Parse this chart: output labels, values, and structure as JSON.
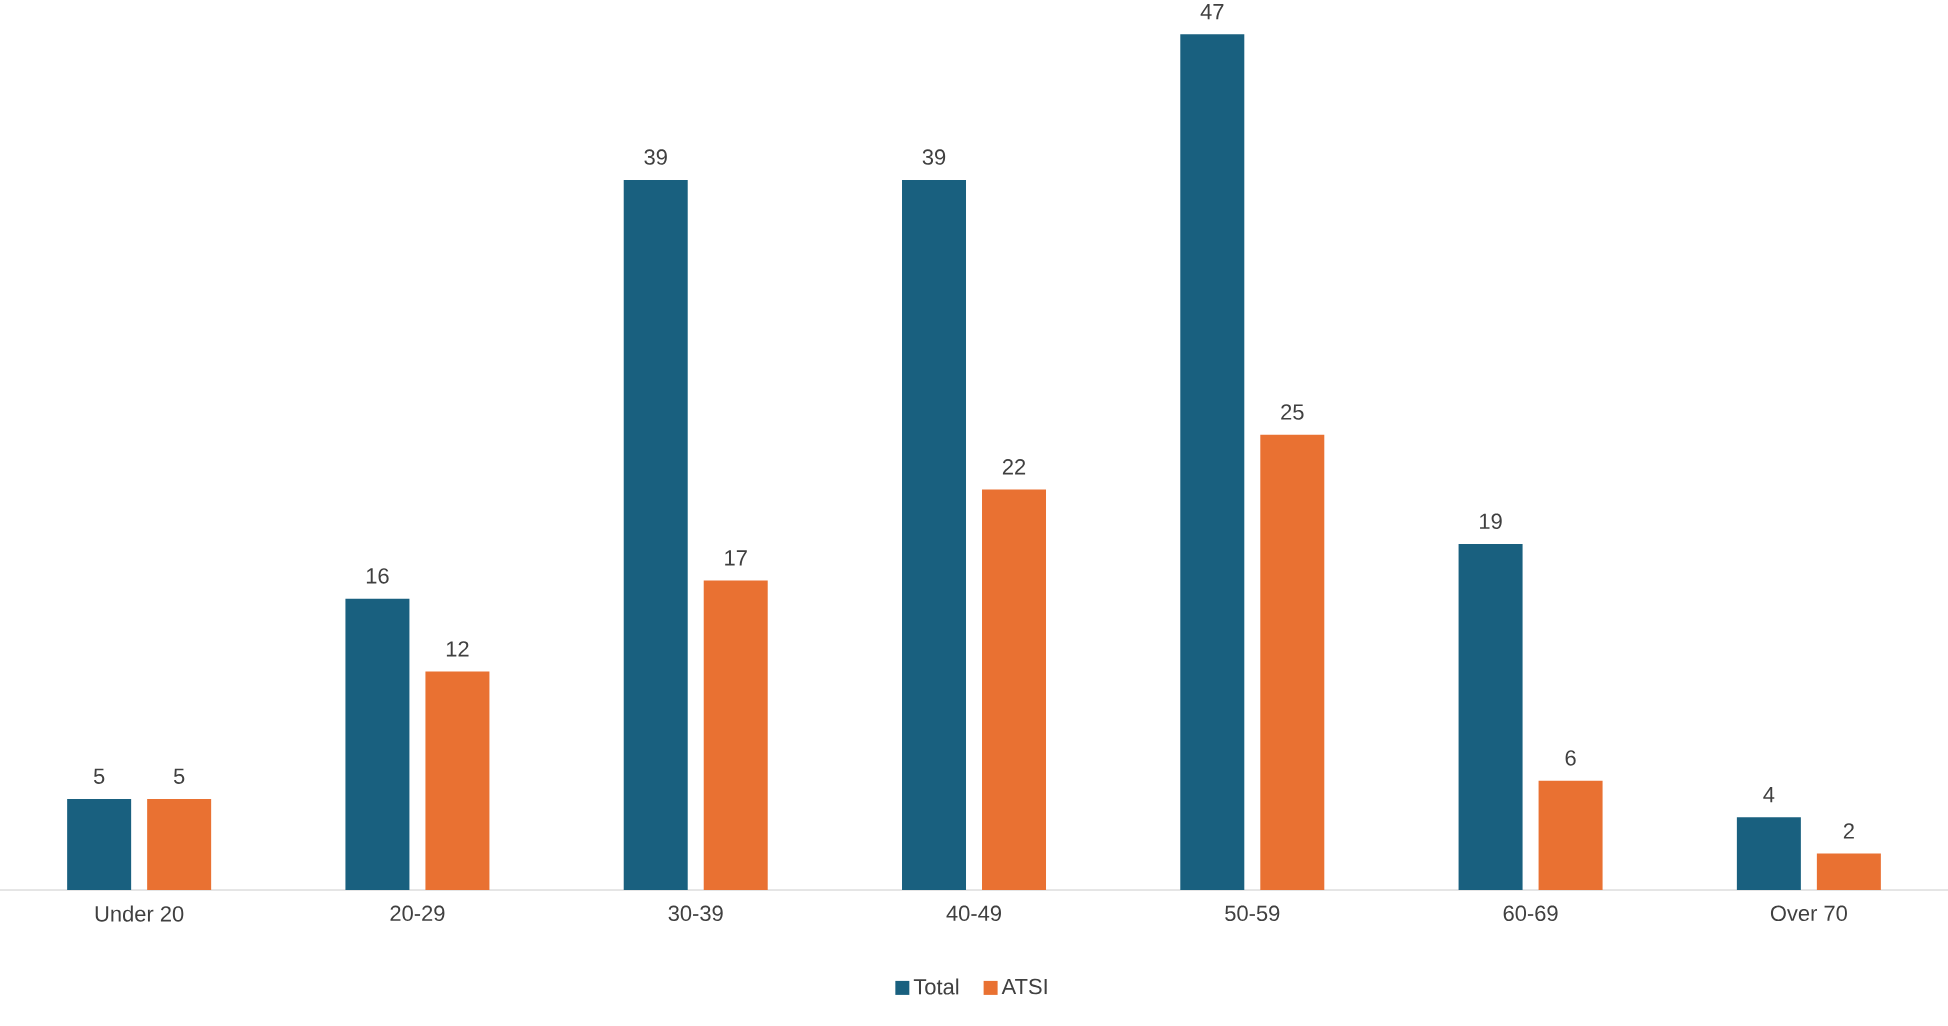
{
  "chart_data": {
    "type": "bar",
    "categories": [
      "Under 20",
      "20-29",
      "30-39",
      "40-49",
      "50-59",
      "60-69",
      "Over 70"
    ],
    "series": [
      {
        "name": "Total",
        "color": "#19607f",
        "values": [
          5,
          16,
          39,
          39,
          47,
          19,
          4
        ]
      },
      {
        "name": "ATSI",
        "color": "#e97132",
        "values": [
          5,
          12,
          17,
          22,
          25,
          6,
          2
        ]
      }
    ],
    "data_labels": true,
    "legend": "bottom"
  }
}
